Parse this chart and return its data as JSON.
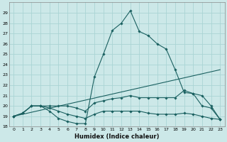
{
  "xlabel": "Humidex (Indice chaleur)",
  "bg_color": "#cce8e8",
  "grid_color": "#aad4d4",
  "line_color": "#1a6060",
  "xlim": [
    -0.5,
    23.5
  ],
  "ylim": [
    18,
    30
  ],
  "yticks": [
    18,
    19,
    20,
    21,
    22,
    23,
    24,
    25,
    26,
    27,
    28,
    29
  ],
  "xticks": [
    0,
    1,
    2,
    3,
    4,
    5,
    6,
    7,
    8,
    9,
    10,
    11,
    12,
    13,
    14,
    15,
    16,
    17,
    18,
    19,
    20,
    21,
    22,
    23
  ],
  "lines": [
    {
      "x": [
        0,
        1,
        2,
        3,
        4,
        5,
        6,
        7,
        8,
        9,
        10,
        11,
        12,
        13,
        14,
        15,
        16,
        17,
        18,
        19,
        20,
        21,
        22,
        23
      ],
      "y": [
        19.0,
        19.3,
        20.0,
        20.0,
        19.5,
        18.8,
        18.5,
        18.3,
        18.3,
        22.8,
        25.0,
        27.3,
        28.0,
        29.2,
        27.2,
        26.8,
        26.0,
        25.5,
        23.5,
        21.3,
        21.2,
        20.0,
        19.8,
        18.7
      ],
      "has_markers": true
    },
    {
      "x": [
        0,
        1,
        2,
        3,
        4,
        5,
        6,
        7,
        8,
        9,
        10,
        11,
        12,
        13,
        14,
        15,
        16,
        17,
        18,
        19,
        20,
        21,
        22,
        23
      ],
      "y": [
        19.0,
        19.3,
        20.0,
        20.0,
        20.0,
        20.0,
        20.0,
        19.8,
        19.5,
        20.3,
        20.5,
        20.7,
        20.8,
        21.0,
        20.8,
        20.8,
        20.8,
        20.8,
        20.8,
        21.5,
        21.2,
        21.0,
        20.0,
        18.7
      ],
      "has_markers": true
    },
    {
      "x": [
        0,
        1,
        2,
        3,
        4,
        5,
        6,
        7,
        8,
        9,
        10,
        11,
        12,
        13,
        14,
        15,
        16,
        17,
        18,
        19,
        20,
        21,
        22,
        23
      ],
      "y": [
        19.0,
        19.3,
        20.0,
        20.0,
        19.8,
        19.5,
        19.2,
        19.0,
        18.8,
        19.2,
        19.5,
        19.5,
        19.5,
        19.5,
        19.5,
        19.3,
        19.2,
        19.2,
        19.2,
        19.3,
        19.2,
        19.0,
        18.8,
        18.7
      ],
      "has_markers": true
    },
    {
      "x": [
        0,
        23
      ],
      "y": [
        19.0,
        23.5
      ],
      "has_markers": false
    }
  ]
}
